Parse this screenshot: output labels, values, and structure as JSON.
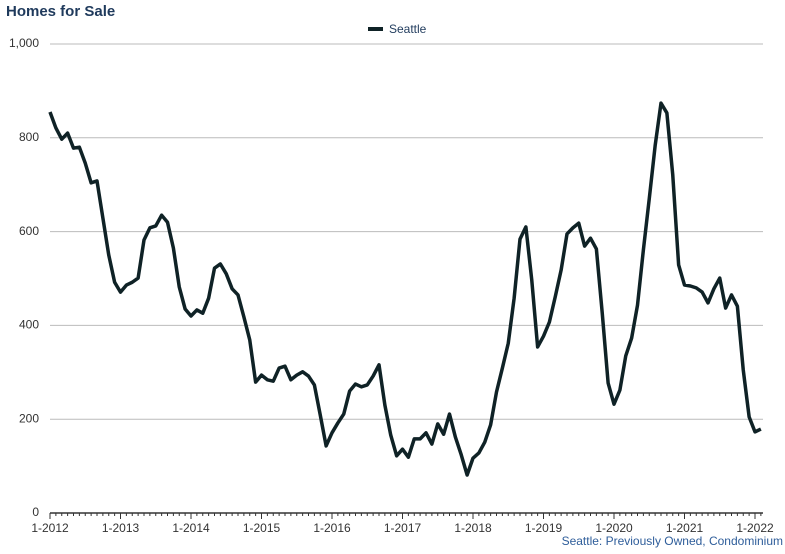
{
  "chart_data": {
    "type": "line",
    "title": "Homes for Sale",
    "categories": [
      "1-2012",
      null,
      null,
      null,
      null,
      null,
      null,
      null,
      null,
      null,
      null,
      null,
      "1-2013",
      null,
      null,
      null,
      null,
      null,
      null,
      null,
      null,
      null,
      null,
      null,
      "1-2014",
      null,
      null,
      null,
      null,
      null,
      null,
      null,
      null,
      null,
      null,
      null,
      "1-2015",
      null,
      null,
      null,
      null,
      null,
      null,
      null,
      null,
      null,
      null,
      null,
      "1-2016",
      null,
      null,
      null,
      null,
      null,
      null,
      null,
      null,
      null,
      null,
      null,
      "1-2017",
      null,
      null,
      null,
      null,
      null,
      null,
      null,
      null,
      null,
      null,
      null,
      "1-2018",
      null,
      null,
      null,
      null,
      null,
      null,
      null,
      null,
      null,
      null,
      null,
      "1-2019",
      null,
      null,
      null,
      null,
      null,
      null,
      null,
      null,
      null,
      null,
      null,
      "1-2020",
      null,
      null,
      null,
      null,
      null,
      null,
      null,
      null,
      null,
      null,
      null,
      "1-2021",
      null,
      null,
      null,
      null,
      null,
      null,
      null,
      null,
      null,
      null,
      null,
      "1-2022",
      null
    ],
    "series": [
      {
        "name": "Seattle",
        "color": "#0f2226",
        "values": [
          855,
          821,
          797,
          810,
          778,
          780,
          746,
          704,
          708,
          629,
          550,
          492,
          471,
          486,
          492,
          501,
          582,
          608,
          612,
          635,
          620,
          565,
          482,
          435,
          420,
          433,
          426,
          458,
          522,
          531,
          510,
          478,
          465,
          418,
          369,
          279,
          294,
          284,
          281,
          309,
          313,
          284,
          294,
          301,
          292,
          273,
          209,
          143,
          171,
          192,
          211,
          260,
          275,
          269,
          273,
          292,
          316,
          230,
          166,
          122,
          136,
          119,
          158,
          158,
          171,
          147,
          190,
          168,
          211,
          162,
          124,
          81,
          117,
          128,
          151,
          188,
          258,
          309,
          362,
          458,
          584,
          610,
          497,
          354,
          377,
          407,
          461,
          518,
          595,
          608,
          618,
          569,
          586,
          563,
          426,
          277,
          232,
          262,
          335,
          373,
          443,
          561,
          670,
          783,
          874,
          853,
          721,
          529,
          486,
          484,
          480,
          471,
          448,
          478,
          501,
          437,
          465,
          441,
          305,
          205,
          173,
          179
        ]
      }
    ],
    "ylim": [
      0,
      1000
    ],
    "yticks": [
      0,
      200,
      400,
      600,
      800,
      {
        "value": 1000,
        "label": "1,000"
      }
    ],
    "grid": true,
    "legend": "top",
    "note": "Seattle: Previously Owned, Condominium"
  }
}
